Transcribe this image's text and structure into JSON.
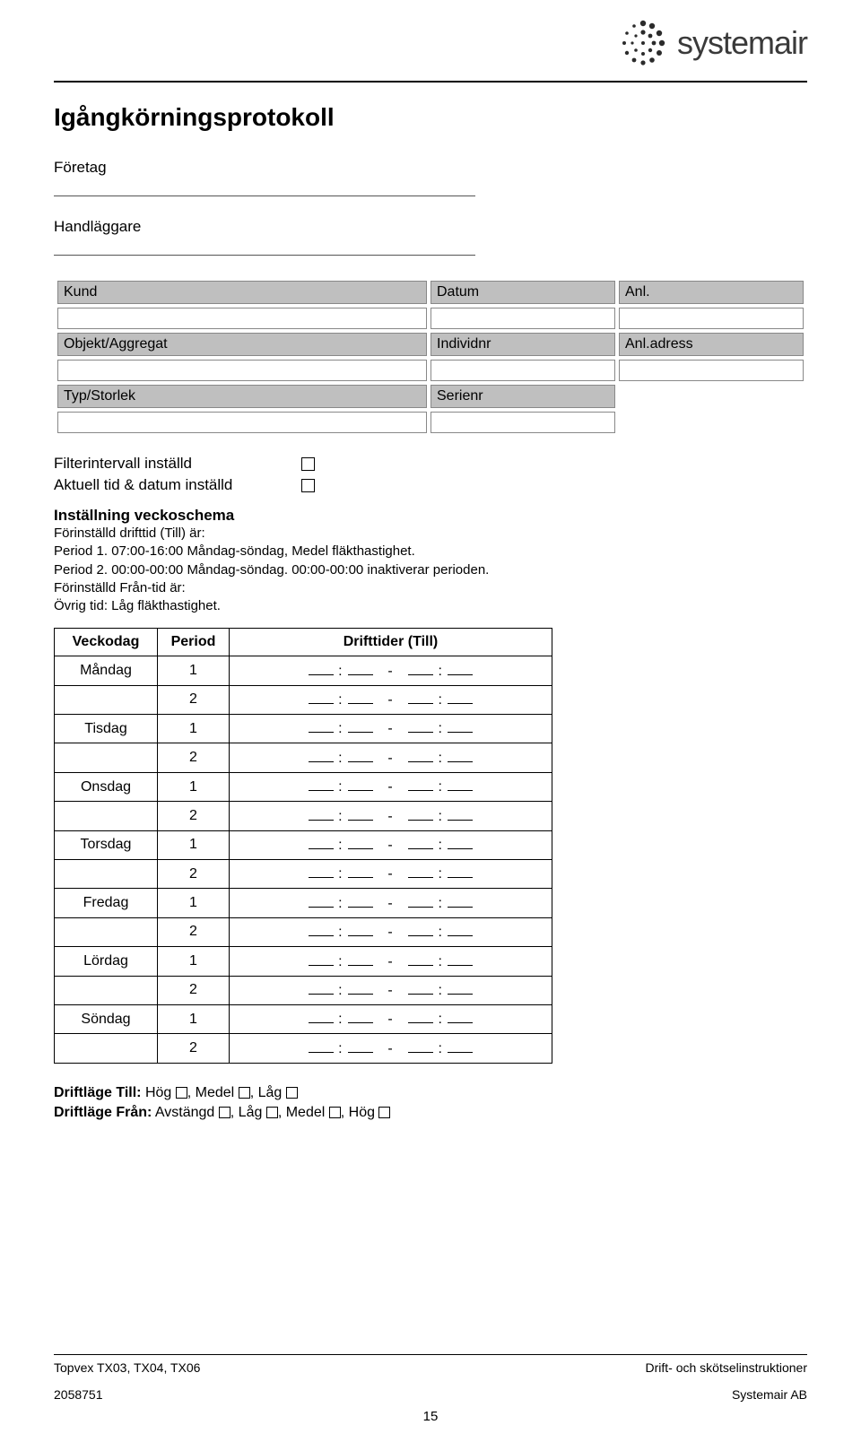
{
  "brand": {
    "name": "systemair"
  },
  "title": "Igångkörningsprotokoll",
  "labels": {
    "company": "Företag",
    "handler": "Handläggare",
    "customer": "Kund",
    "date": "Datum",
    "anl": "Anl.",
    "object": "Objekt/Aggregat",
    "individnr": "Individnr",
    "anladdr": "Anl.adress",
    "type": "Typ/Storlek",
    "serienr": "Serienr"
  },
  "checks": {
    "filter": "Filterintervall inställd",
    "datetime": "Aktuell tid & datum inställd"
  },
  "schedule_section": {
    "heading": "Inställning veckoschema",
    "line1": "Förinställd drifttid (Till) är:",
    "line2": "Period 1. 07:00-16:00 Måndag-söndag, Medel fläkthastighet.",
    "line3": "Period 2. 00:00-00:00 Måndag-söndag. 00:00-00:00 inaktiverar perioden.",
    "line4": "Förinställd Från-tid är:",
    "line5": "Övrig tid: Låg fläkthastighet."
  },
  "sched_headers": {
    "day": "Veckodag",
    "period": "Period",
    "times": "Drifttider (Till)"
  },
  "days": [
    "Måndag",
    "Tisdag",
    "Onsdag",
    "Torsdag",
    "Fredag",
    "Lördag",
    "Söndag"
  ],
  "periods": [
    "1",
    "2"
  ],
  "modes": {
    "till_label": "Driftläge Till:",
    "till_opts": [
      "Hög",
      "Medel",
      "Låg"
    ],
    "fran_label": "Driftläge Från:",
    "fran_opts": [
      "Avstängd",
      "Låg",
      "Medel",
      "Hög"
    ]
  },
  "footer": {
    "left1": "Topvex TX03, TX04, TX06",
    "right1": "Drift- och skötselinstruktioner",
    "left2": "2058751",
    "right2": "Systemair AB",
    "page": "15"
  },
  "colors": {
    "header_bg": "#bfbfbf",
    "border": "#888888",
    "text": "#000000",
    "logo_text": "#3a3a3a"
  }
}
